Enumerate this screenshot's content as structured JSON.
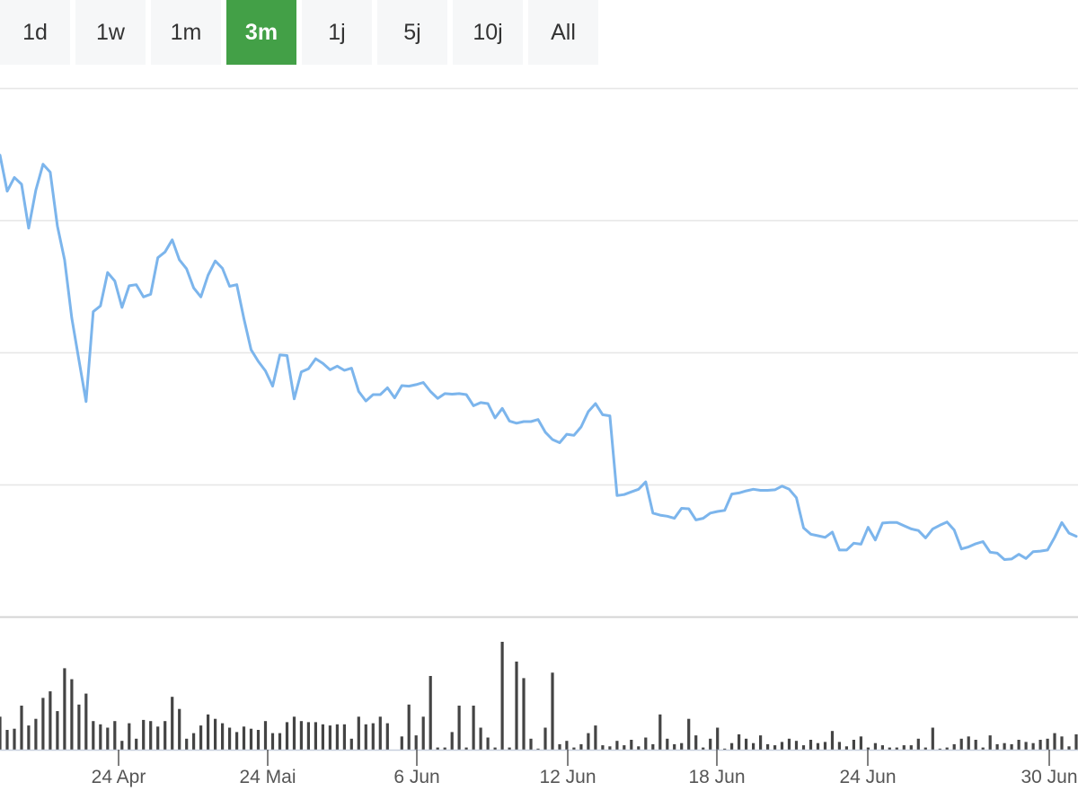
{
  "range_selector": {
    "buttons": [
      "1d",
      "1w",
      "1m",
      "3m",
      "1j",
      "5j",
      "10j",
      "All"
    ],
    "active": "3m",
    "active_color": "#43a047"
  },
  "chart_data": {
    "type": "line",
    "title": "",
    "xlabel": "",
    "ylabel": "",
    "x_tick_labels": [
      "24 Apr",
      "24 Mai",
      "6 Jun",
      "12 Jun",
      "18 Jun",
      "24 Jun",
      "30 Jun"
    ],
    "y_axis": {
      "tick_labels_shown": false,
      "gridlines": 4,
      "range": [
        0,
        100
      ]
    },
    "grid": true,
    "legend": "none",
    "line_color": "#7cb5ec",
    "volume_color": "#444444",
    "series": [
      {
        "type": "line",
        "values": [
          87.3,
          80.5,
          83.1,
          81.8,
          73.5,
          80.7,
          85.6,
          84.1,
          73.9,
          67.5,
          56.5,
          48.5,
          40.7,
          57.7,
          58.8,
          65.1,
          63.5,
          58.5,
          62.6,
          62.8,
          60.5,
          61.0,
          67.9,
          69.0,
          71.3,
          67.5,
          65.8,
          62.2,
          60.5,
          64.6,
          67.3,
          65.9,
          62.5,
          62.8,
          56.4,
          50.5,
          48.3,
          46.5,
          43.6,
          49.5,
          49.4,
          41.2,
          46.3,
          46.9,
          48.8,
          47.9,
          46.7,
          47.4,
          46.6,
          47.0,
          42.6,
          40.8,
          42.0,
          42.0,
          43.3,
          41.4,
          43.7,
          43.6,
          43.9,
          44.3,
          42.6,
          41.3,
          42.2,
          42.1,
          42.2,
          42.0,
          39.9,
          40.5,
          40.3,
          37.6,
          39.4,
          37.0,
          36.6,
          36.9,
          36.9,
          37.3,
          34.9,
          33.5,
          32.9,
          34.5,
          34.3,
          35.9,
          38.8,
          40.3,
          38.2,
          38.0,
          22.9,
          23.1,
          23.6,
          24.1,
          25.5,
          19.6,
          19.2,
          19.0,
          18.6,
          20.5,
          20.4,
          18.3,
          18.6,
          19.6,
          19.9,
          20.1,
          23.2,
          23.4,
          23.8,
          24.1,
          23.9,
          23.9,
          24.0,
          24.7,
          24.1,
          22.5,
          16.8,
          15.6,
          15.3,
          15.0,
          16.0,
          12.6,
          12.6,
          13.9,
          13.7,
          16.9,
          14.5,
          17.7,
          17.8,
          17.8,
          17.2,
          16.6,
          16.3,
          14.9,
          16.6,
          17.3,
          17.9,
          16.4,
          12.8,
          13.2,
          13.8,
          14.2,
          12.2,
          12.0,
          10.8,
          10.9,
          11.8,
          11.0,
          12.3,
          12.4,
          12.6,
          15.0,
          17.8,
          15.8,
          15.2
        ]
      },
      {
        "type": "volume",
        "values": [
          30,
          18,
          19,
          40,
          22,
          28,
          47,
          53,
          35,
          74,
          64,
          41,
          51,
          26,
          23,
          20,
          26,
          8,
          24,
          10,
          27,
          26,
          21,
          26,
          48,
          37,
          10,
          15,
          22,
          32,
          28,
          24,
          20,
          16,
          21,
          19,
          18,
          26,
          15,
          15,
          25,
          30,
          26,
          25,
          25,
          23,
          22,
          23,
          23,
          10,
          30,
          23,
          24,
          30,
          24,
          0,
          12,
          41,
          13,
          30,
          67,
          2,
          2,
          16,
          40,
          2,
          40,
          20,
          11,
          2,
          98,
          2,
          80,
          65,
          10,
          1,
          20,
          70,
          5,
          8,
          2,
          5,
          15,
          22,
          4,
          3,
          8,
          4,
          9,
          3,
          11,
          5,
          32,
          10,
          5,
          6,
          28,
          13,
          2,
          10,
          20,
          1,
          6,
          14,
          10,
          6,
          13,
          5,
          4,
          7,
          10,
          8,
          4,
          9,
          6,
          7,
          17,
          7,
          3,
          9,
          12,
          2,
          6,
          4,
          2,
          2,
          4,
          4,
          10,
          2,
          20,
          1,
          2,
          5,
          10,
          12,
          9,
          2,
          13,
          5,
          6,
          5,
          9,
          7,
          6,
          9,
          10,
          15,
          12,
          3,
          14
        ]
      }
    ]
  }
}
